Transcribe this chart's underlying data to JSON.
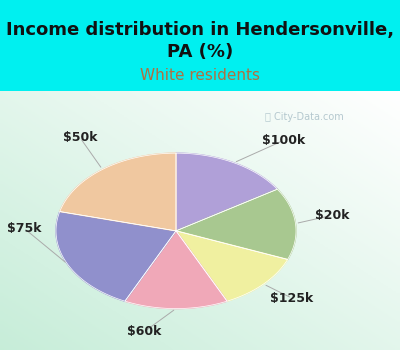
{
  "title": "Income distribution in Hendersonville,\nPA (%)",
  "subtitle": "White residents",
  "title_color": "#111111",
  "subtitle_color": "#b07040",
  "bg_cyan": "#00f0f0",
  "watermark": "ⓘ City-Data.com",
  "labels": [
    "$100k",
    "$20k",
    "$125k",
    "$60k",
    "$75k",
    "$50k"
  ],
  "sizes": [
    16,
    15,
    12,
    14,
    22,
    21
  ],
  "colors": [
    "#b0a0d8",
    "#a8c890",
    "#f0f0a0",
    "#f0a8b8",
    "#9090cc",
    "#f0c8a0"
  ],
  "startangle": 90,
  "title_fontsize": 13,
  "subtitle_fontsize": 11,
  "label_fontsize": 9
}
